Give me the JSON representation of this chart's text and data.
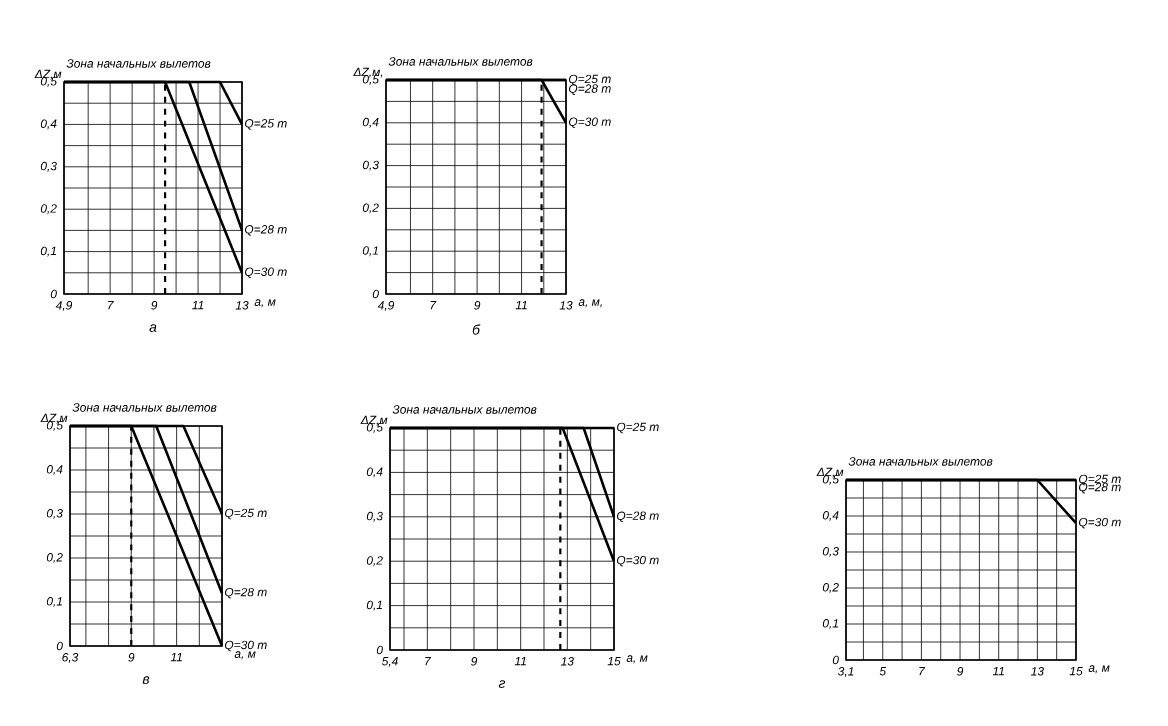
{
  "chart_data": [
    {
      "type": "line",
      "ylabel": "ΔZ,м",
      "xlabel": "a, м",
      "annotations": [
        "Зона начальных вылетов",
        "а"
      ],
      "xlim": [
        4.9,
        13
      ],
      "ylim": [
        0,
        0.5
      ],
      "grid": true,
      "marker": "none",
      "xticks": [
        {
          "value": 4.9,
          "label": "4,9"
        },
        {
          "value": 6,
          "label": null
        },
        7,
        {
          "value": 8,
          "label": null
        },
        9,
        {
          "value": 10,
          "label": null
        },
        11,
        {
          "value": 12,
          "label": null
        },
        13
      ],
      "yticks": [
        0,
        {
          "value": 0.05,
          "label": null
        },
        {
          "value": 0.1,
          "label": "0,1"
        },
        {
          "value": 0.15,
          "label": null
        },
        {
          "value": 0.2,
          "label": "0,2"
        },
        {
          "value": 0.25,
          "label": null
        },
        {
          "value": 0.3,
          "label": "0,3"
        },
        {
          "value": 0.35,
          "label": null
        },
        {
          "value": 0.4,
          "label": "0,4"
        },
        {
          "value": 0.45,
          "label": null
        },
        {
          "value": 0.5,
          "label": "0,5"
        }
      ],
      "ref_lines": [
        {
          "axis": "x",
          "value": 9.5,
          "color": "#000000",
          "line_style": "dashed"
        }
      ],
      "series": [
        {
          "name": "Q=25 т",
          "color": "#000000",
          "x": [
            4.9,
            12,
            13
          ],
          "values": [
            0.5,
            0.5,
            0.4
          ]
        },
        {
          "name": "Q=28 т",
          "color": "#000000",
          "x": [
            4.9,
            10.6,
            13
          ],
          "values": [
            0.5,
            0.5,
            0.15
          ]
        },
        {
          "name": "Q=30 т",
          "color": "#000000",
          "x": [
            4.9,
            9.5,
            13
          ],
          "values": [
            0.5,
            0.5,
            0.05
          ]
        }
      ]
    },
    {
      "type": "line",
      "ylabel": "ΔZ,м,",
      "xlabel": "a, м,",
      "annotations": [
        "Зона начальных вылетов",
        "б"
      ],
      "xlim": [
        4.9,
        13
      ],
      "ylim": [
        0,
        0.5
      ],
      "grid": true,
      "marker": "none",
      "xticks": [
        {
          "value": 4.9,
          "label": "4,9"
        },
        {
          "value": 6,
          "label": null
        },
        7,
        {
          "value": 8,
          "label": null
        },
        9,
        {
          "value": 10,
          "label": null
        },
        11,
        {
          "value": 12,
          "label": null
        },
        13
      ],
      "yticks": [
        0,
        {
          "value": 0.05,
          "label": null
        },
        {
          "value": 0.1,
          "label": "0,1"
        },
        {
          "value": 0.15,
          "label": null
        },
        {
          "value": 0.2,
          "label": "0,2"
        },
        {
          "value": 0.25,
          "label": null
        },
        {
          "value": 0.3,
          "label": "0,3"
        },
        {
          "value": 0.35,
          "label": null
        },
        {
          "value": 0.4,
          "label": "0,4"
        },
        {
          "value": 0.45,
          "label": null
        },
        {
          "value": 0.5,
          "label": "0,5"
        }
      ],
      "ref_lines": [
        {
          "axis": "x",
          "value": 11.9,
          "color": "#000000",
          "line_style": "dashed"
        }
      ],
      "series": [
        {
          "name": "Q=25 т",
          "color": "#000000",
          "x": [
            4.9,
            13
          ],
          "values": [
            0.5,
            0.5
          ]
        },
        {
          "name": "Q=28 т",
          "color": "#000000",
          "x": [
            4.9,
            13
          ],
          "values": [
            0.5,
            0.5
          ]
        },
        {
          "name": "Q=30 т",
          "color": "#000000",
          "x": [
            4.9,
            11.9,
            13
          ],
          "values": [
            0.5,
            0.5,
            0.4
          ]
        }
      ]
    },
    {
      "type": "line",
      "ylabel": "ΔZ,м",
      "xlabel": "a, м",
      "annotations": [
        "Зона начальных вылетов",
        "в"
      ],
      "xlim": [
        6.3,
        13
      ],
      "ylim": [
        0,
        0.5
      ],
      "grid": true,
      "marker": "none",
      "xticks": [
        {
          "value": 6.3,
          "label": "6,3"
        },
        {
          "value": 7,
          "label": null
        },
        {
          "value": 8,
          "label": null
        },
        9,
        {
          "value": 10,
          "label": null
        },
        11,
        {
          "value": 12,
          "label": null
        },
        {
          "value": 13,
          "label": null
        }
      ],
      "yticks": [
        0,
        {
          "value": 0.05,
          "label": null
        },
        {
          "value": 0.1,
          "label": "0,1"
        },
        {
          "value": 0.15,
          "label": null
        },
        {
          "value": 0.2,
          "label": "0,2"
        },
        {
          "value": 0.25,
          "label": null
        },
        {
          "value": 0.3,
          "label": "0,3"
        },
        {
          "value": 0.35,
          "label": null
        },
        {
          "value": 0.4,
          "label": "0,4"
        },
        {
          "value": 0.45,
          "label": null
        },
        {
          "value": 0.5,
          "label": "0,5"
        }
      ],
      "ref_lines": [
        {
          "axis": "x",
          "value": 9,
          "color": "#000000",
          "line_style": "dashed"
        }
      ],
      "series": [
        {
          "name": "Q=25 т",
          "color": "#000000",
          "x": [
            6.3,
            11.3,
            13
          ],
          "values": [
            0.5,
            0.5,
            0.3
          ]
        },
        {
          "name": "Q=28 т",
          "color": "#000000",
          "x": [
            6.3,
            10.1,
            13
          ],
          "values": [
            0.5,
            0.5,
            0.12
          ]
        },
        {
          "name": "Q=30 т",
          "color": "#000000",
          "x": [
            6.3,
            9,
            13
          ],
          "values": [
            0.5,
            0.5,
            0
          ]
        }
      ]
    },
    {
      "type": "line",
      "ylabel": "ΔZ,м",
      "xlabel": "a, м",
      "annotations": [
        "Зона начальных вылетов",
        "г"
      ],
      "xlim": [
        5.4,
        15
      ],
      "ylim": [
        0,
        0.5
      ],
      "grid": true,
      "marker": "none",
      "xticks": [
        {
          "value": 5.4,
          "label": "5,4"
        },
        {
          "value": 6,
          "label": null
        },
        7,
        {
          "value": 8,
          "label": null
        },
        9,
        {
          "value": 10,
          "label": null
        },
        11,
        {
          "value": 12,
          "label": null
        },
        13,
        {
          "value": 14,
          "label": null
        },
        15
      ],
      "yticks": [
        0,
        {
          "value": 0.05,
          "label": null
        },
        {
          "value": 0.1,
          "label": "0,1"
        },
        {
          "value": 0.15,
          "label": null
        },
        {
          "value": 0.2,
          "label": "0,2"
        },
        {
          "value": 0.25,
          "label": null
        },
        {
          "value": 0.3,
          "label": "0,3"
        },
        {
          "value": 0.35,
          "label": null
        },
        {
          "value": 0.4,
          "label": "0,4"
        },
        {
          "value": 0.45,
          "label": null
        },
        {
          "value": 0.5,
          "label": "0,5"
        }
      ],
      "ref_lines": [
        {
          "axis": "x",
          "value": 12.7,
          "color": "#000000",
          "line_style": "dashed"
        }
      ],
      "series": [
        {
          "name": "Q=25 т",
          "color": "#000000",
          "x": [
            5.4,
            15
          ],
          "values": [
            0.5,
            0.5
          ]
        },
        {
          "name": "Q=28 т",
          "color": "#000000",
          "x": [
            5.4,
            13.7,
            15
          ],
          "values": [
            0.5,
            0.5,
            0.3
          ]
        },
        {
          "name": "Q=30 т",
          "color": "#000000",
          "x": [
            5.4,
            12.8,
            15
          ],
          "values": [
            0.5,
            0.5,
            0.2
          ]
        }
      ]
    },
    {
      "type": "line",
      "ylabel": "ΔZ,м",
      "xlabel": "a, м",
      "annotations": [
        "Зона начальных вылетов"
      ],
      "xlim": [
        3.1,
        15
      ],
      "ylim": [
        0,
        0.5
      ],
      "grid": true,
      "marker": "none",
      "xticks": [
        {
          "value": 3.1,
          "label": "3,1"
        },
        {
          "value": 4,
          "label": null
        },
        5,
        {
          "value": 6,
          "label": null
        },
        7,
        {
          "value": 8,
          "label": null
        },
        9,
        {
          "value": 10,
          "label": null
        },
        11,
        {
          "value": 12,
          "label": null
        },
        13,
        {
          "value": 14,
          "label": null
        },
        15
      ],
      "yticks": [
        0,
        {
          "value": 0.05,
          "label": null
        },
        {
          "value": 0.1,
          "label": "0,1"
        },
        {
          "value": 0.15,
          "label": null
        },
        {
          "value": 0.2,
          "label": "0,2"
        },
        {
          "value": 0.25,
          "label": null
        },
        {
          "value": 0.3,
          "label": "0,3"
        },
        {
          "value": 0.35,
          "label": null
        },
        {
          "value": 0.4,
          "label": "0,4"
        },
        {
          "value": 0.45,
          "label": null
        },
        {
          "value": 0.5,
          "label": "0,5"
        }
      ],
      "series": [
        {
          "name": "Q=25 т",
          "color": "#000000",
          "x": [
            3.1,
            15
          ],
          "values": [
            0.5,
            0.5
          ]
        },
        {
          "name": "Q=28 т",
          "color": "#000000",
          "x": [
            3.1,
            15
          ],
          "values": [
            0.5,
            0.5
          ]
        },
        {
          "name": "Q=30 т",
          "color": "#000000",
          "x": [
            3.1,
            13,
            15
          ],
          "values": [
            0.5,
            0.5,
            0.38
          ]
        }
      ]
    }
  ]
}
